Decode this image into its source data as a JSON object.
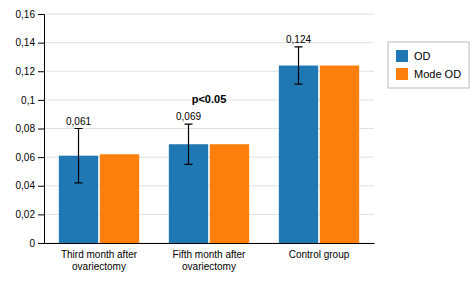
{
  "chart_data": {
    "type": "bar",
    "categories": [
      "Third month after\novariectomy",
      "Fifth month after\novariectomy",
      "Control group"
    ],
    "series": [
      {
        "name": "OD",
        "values": [
          0.061,
          0.069,
          0.124
        ],
        "errors": [
          0.019,
          0.014,
          0.013
        ],
        "value_labels": [
          "0,061",
          "0,069",
          "0,124"
        ]
      },
      {
        "name": "Mode OD",
        "values": [
          0.062,
          0.069,
          0.124
        ]
      }
    ],
    "ylim": [
      0,
      0.16
    ],
    "yticks": [
      0,
      {
        "value": 0.02,
        "label": "0,02"
      },
      {
        "value": 0.04,
        "label": "0,04"
      },
      {
        "value": 0.06,
        "label": "0,06"
      },
      {
        "value": 0.08,
        "label": "0,08"
      },
      {
        "value": 0.1,
        "label": "0,1"
      },
      {
        "value": 0.12,
        "label": "0,12"
      },
      {
        "value": 0.14,
        "label": "0,14"
      },
      {
        "value": 0.16,
        "label": "0,16"
      }
    ],
    "grid": true,
    "legend": "right",
    "data_labels": true,
    "annotations": [
      {
        "text": "p<0.05",
        "category": "Fifth month after\novariectomy",
        "y": 0.098
      }
    ]
  }
}
